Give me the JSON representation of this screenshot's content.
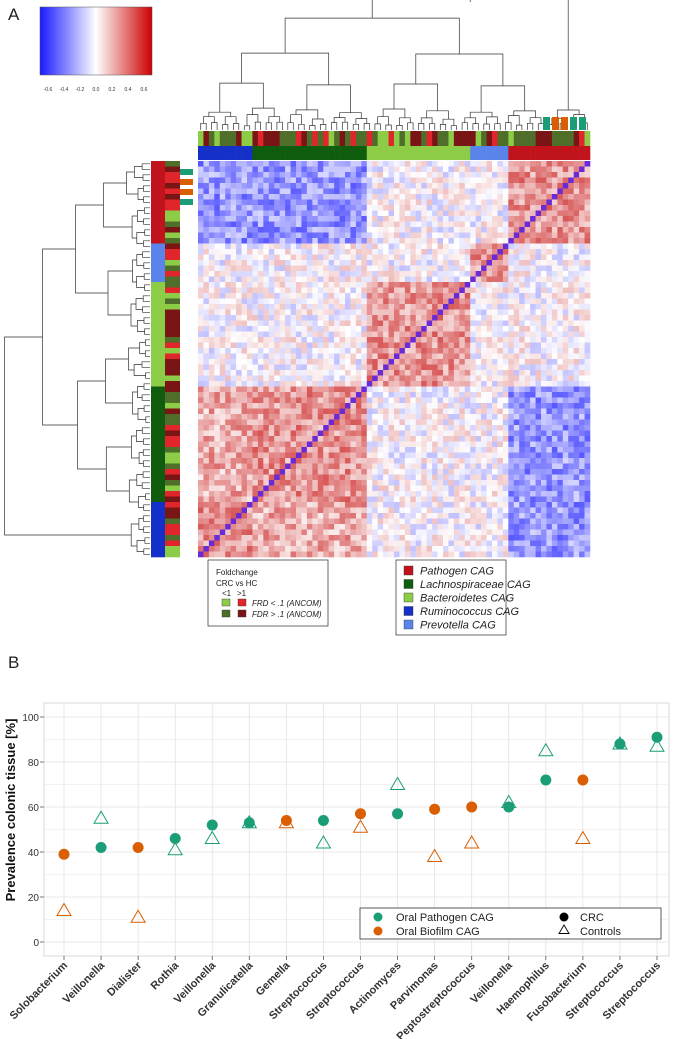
{
  "panels": {
    "a_label": "A",
    "b_label": "B"
  },
  "chart_data": [
    {
      "type": "heatmap",
      "title": "",
      "color_scale": {
        "ticks": [
          "-0.6",
          "-0.4",
          "-0.2",
          "0.0",
          "0.2",
          "0.4",
          "0.6"
        ],
        "range": [
          -0.7,
          0.7
        ],
        "low_color": "#1a1aff",
        "mid_color": "#ffffff",
        "high_color": "#cc0000"
      },
      "cag_groups": [
        {
          "name": "Pathogen CAG",
          "color": "#c0131b"
        },
        {
          "name": "Lachnospiraceae CAG",
          "color": "#0f5c0f"
        },
        {
          "name": "Bacteroidetes CAG",
          "color": "#8ccc46"
        },
        {
          "name": "Ruminococcus CAG",
          "color": "#1530c8"
        },
        {
          "name": "Prevotella CAG",
          "color": "#5a84ea"
        }
      ],
      "foldchange_legend": {
        "title_line1": "Foldchange",
        "title_line2": "CRC vs HC",
        "lt1": "<1",
        "gt1": ">1",
        "row1": "FRD < .1 (ANCOM)",
        "row2": "FDR > .1 (ANCOM)",
        "colors": {
          "lt1_sig": "#8ccc46",
          "gt1_sig": "#e0252b",
          "lt1_ns": "#4e6e2a",
          "gt1_ns": "#7a1515"
        }
      }
    },
    {
      "type": "scatter",
      "title": "",
      "xlabel": "",
      "ylabel": "Prevalence colonic tissue [%]",
      "ylim": [
        0,
        100
      ],
      "yticks": [
        "0",
        "20",
        "40",
        "60",
        "80",
        "100"
      ],
      "categories": [
        "Solobacterium",
        "Veillonella",
        "Dialister",
        "Rothia",
        "Veillonella",
        "Granulicatella",
        "Gemella",
        "Streptococcus",
        "Streptococcus",
        "Actinomyces",
        "Parvimonas",
        "Peptostreptococcus",
        "Veillonella",
        "Haemophilus",
        "Fusobacterium",
        "Streptococcus",
        "Streptococcus"
      ],
      "cag": [
        "biofilm",
        "pathogen",
        "biofilm",
        "pathogen",
        "pathogen",
        "pathogen",
        "biofilm",
        "pathogen",
        "biofilm",
        "pathogen",
        "biofilm",
        "biofilm",
        "pathogen",
        "pathogen",
        "biofilm",
        "pathogen",
        "pathogen"
      ],
      "series": [
        {
          "name": "CRC",
          "marker": "circle",
          "values": [
            39,
            42,
            42,
            46,
            52,
            53,
            54,
            54,
            57,
            57,
            59,
            60,
            60,
            72,
            72,
            88,
            91
          ]
        },
        {
          "name": "Controls",
          "marker": "triangle",
          "values": [
            14,
            55,
            11,
            41,
            46,
            53,
            53,
            44,
            51,
            70,
            38,
            44,
            62,
            85,
            46,
            88,
            87
          ]
        }
      ],
      "colors": {
        "pathogen": "#1b9e77",
        "biofilm": "#d95f02"
      },
      "legend": {
        "oral_pathogen": "Oral Pathogen CAG",
        "oral_biofilm": "Oral Biofilm CAG",
        "crc": "CRC",
        "controls": "Controls"
      }
    }
  ]
}
